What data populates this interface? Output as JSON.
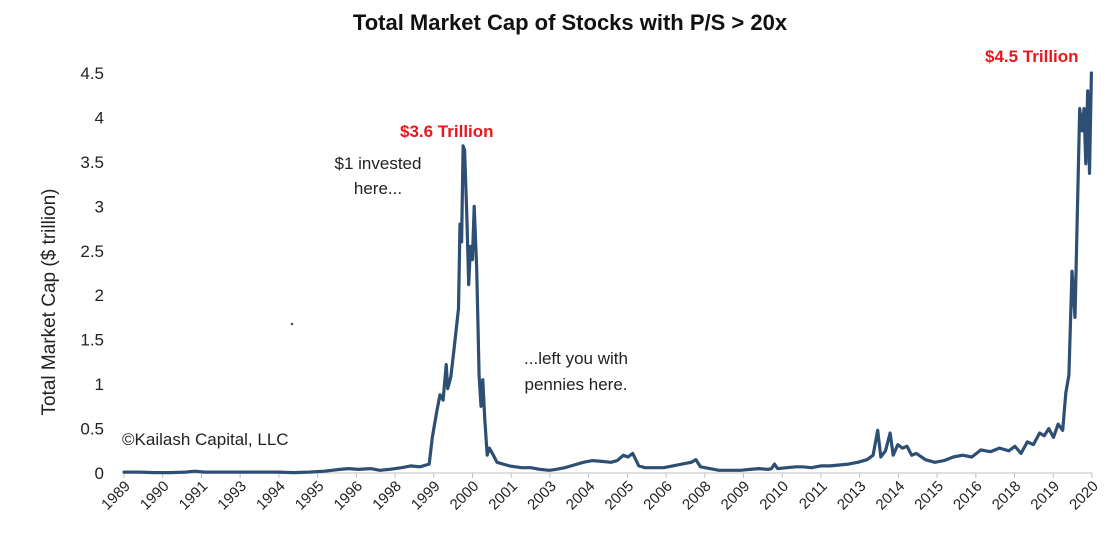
{
  "chart_data": {
    "type": "line",
    "title": "Total Market Cap of Stocks with P/S > 20x",
    "ylabel": "Total Market Cap ($ trillion)",
    "xlabel": "",
    "ylim": [
      0,
      4.5
    ],
    "yticks": [
      "0",
      "0.5",
      "1",
      "1.5",
      "2",
      "2.5",
      "3",
      "3.5",
      "4",
      "4.5"
    ],
    "xtick_labels": [
      "1989",
      "1990",
      "1991",
      "1993",
      "1994",
      "1995",
      "1996",
      "1998",
      "1999",
      "2000",
      "2001",
      "2003",
      "2004",
      "2005",
      "2006",
      "2008",
      "2009",
      "2010",
      "2011",
      "2013",
      "2014",
      "2015",
      "2016",
      "2018",
      "2019",
      "2020"
    ],
    "line_color": "#2e4f74",
    "series": [
      {
        "name": "Total Market Cap",
        "points": [
          [
            1989.0,
            0.01
          ],
          [
            1989.5,
            0.01
          ],
          [
            1990.0,
            0.005
          ],
          [
            1990.5,
            0.005
          ],
          [
            1991.0,
            0.01
          ],
          [
            1991.3,
            0.02
          ],
          [
            1991.6,
            0.01
          ],
          [
            1992.0,
            0.01
          ],
          [
            1992.5,
            0.01
          ],
          [
            1993.0,
            0.01
          ],
          [
            1993.5,
            0.01
          ],
          [
            1994.0,
            0.01
          ],
          [
            1994.5,
            0.005
          ],
          [
            1995.0,
            0.01
          ],
          [
            1995.5,
            0.02
          ],
          [
            1996.0,
            0.04
          ],
          [
            1996.3,
            0.05
          ],
          [
            1996.6,
            0.04
          ],
          [
            1997.0,
            0.05
          ],
          [
            1997.3,
            0.03
          ],
          [
            1997.6,
            0.04
          ],
          [
            1998.0,
            0.06
          ],
          [
            1998.3,
            0.08
          ],
          [
            1998.6,
            0.07
          ],
          [
            1998.9,
            0.1
          ],
          [
            1999.0,
            0.4
          ],
          [
            1999.15,
            0.7
          ],
          [
            1999.25,
            0.88
          ],
          [
            1999.35,
            0.82
          ],
          [
            1999.45,
            1.22
          ],
          [
            1999.5,
            0.95
          ],
          [
            1999.6,
            1.08
          ],
          [
            1999.7,
            1.38
          ],
          [
            1999.85,
            1.85
          ],
          [
            1999.9,
            2.8
          ],
          [
            1999.95,
            2.6
          ],
          [
            2000.0,
            3.68
          ],
          [
            2000.05,
            3.63
          ],
          [
            2000.12,
            2.9
          ],
          [
            2000.18,
            2.12
          ],
          [
            2000.24,
            2.55
          ],
          [
            2000.3,
            2.4
          ],
          [
            2000.36,
            3.0
          ],
          [
            2000.44,
            2.3
          ],
          [
            2000.52,
            1.1
          ],
          [
            2000.58,
            0.75
          ],
          [
            2000.64,
            1.05
          ],
          [
            2000.7,
            0.62
          ],
          [
            2000.78,
            0.2
          ],
          [
            2000.85,
            0.28
          ],
          [
            2000.95,
            0.22
          ],
          [
            2001.1,
            0.12
          ],
          [
            2001.3,
            0.1
          ],
          [
            2001.5,
            0.08
          ],
          [
            2001.7,
            0.07
          ],
          [
            2001.9,
            0.06
          ],
          [
            2002.2,
            0.06
          ],
          [
            2002.5,
            0.04
          ],
          [
            2002.8,
            0.03
          ],
          [
            2003.0,
            0.04
          ],
          [
            2003.3,
            0.06
          ],
          [
            2003.6,
            0.09
          ],
          [
            2003.9,
            0.12
          ],
          [
            2004.2,
            0.14
          ],
          [
            2004.5,
            0.13
          ],
          [
            2004.8,
            0.12
          ],
          [
            2005.0,
            0.14
          ],
          [
            2005.2,
            0.2
          ],
          [
            2005.35,
            0.18
          ],
          [
            2005.5,
            0.22
          ],
          [
            2005.7,
            0.08
          ],
          [
            2005.9,
            0.06
          ],
          [
            2006.2,
            0.06
          ],
          [
            2006.5,
            0.06
          ],
          [
            2006.8,
            0.08
          ],
          [
            2007.1,
            0.1
          ],
          [
            2007.4,
            0.12
          ],
          [
            2007.55,
            0.15
          ],
          [
            2007.7,
            0.07
          ],
          [
            2008.0,
            0.05
          ],
          [
            2008.3,
            0.03
          ],
          [
            2008.6,
            0.03
          ],
          [
            2009.0,
            0.03
          ],
          [
            2009.3,
            0.04
          ],
          [
            2009.6,
            0.05
          ],
          [
            2009.9,
            0.04
          ],
          [
            2010.0,
            0.05
          ],
          [
            2010.1,
            0.1
          ],
          [
            2010.2,
            0.05
          ],
          [
            2010.5,
            0.06
          ],
          [
            2010.8,
            0.07
          ],
          [
            2011.0,
            0.07
          ],
          [
            2011.3,
            0.06
          ],
          [
            2011.6,
            0.08
          ],
          [
            2011.9,
            0.08
          ],
          [
            2012.2,
            0.09
          ],
          [
            2012.5,
            0.1
          ],
          [
            2012.8,
            0.12
          ],
          [
            2013.1,
            0.15
          ],
          [
            2013.3,
            0.2
          ],
          [
            2013.45,
            0.48
          ],
          [
            2013.55,
            0.18
          ],
          [
            2013.7,
            0.25
          ],
          [
            2013.85,
            0.45
          ],
          [
            2013.95,
            0.2
          ],
          [
            2014.1,
            0.32
          ],
          [
            2014.25,
            0.28
          ],
          [
            2014.4,
            0.3
          ],
          [
            2014.55,
            0.2
          ],
          [
            2014.7,
            0.22
          ],
          [
            2015.0,
            0.15
          ],
          [
            2015.3,
            0.12
          ],
          [
            2015.6,
            0.14
          ],
          [
            2015.9,
            0.18
          ],
          [
            2016.2,
            0.2
          ],
          [
            2016.5,
            0.18
          ],
          [
            2016.8,
            0.26
          ],
          [
            2017.1,
            0.24
          ],
          [
            2017.4,
            0.28
          ],
          [
            2017.7,
            0.25
          ],
          [
            2017.9,
            0.3
          ],
          [
            2018.1,
            0.22
          ],
          [
            2018.3,
            0.35
          ],
          [
            2018.5,
            0.32
          ],
          [
            2018.7,
            0.45
          ],
          [
            2018.85,
            0.42
          ],
          [
            2019.0,
            0.5
          ],
          [
            2019.15,
            0.4
          ],
          [
            2019.3,
            0.55
          ],
          [
            2019.45,
            0.48
          ],
          [
            2019.55,
            0.9
          ],
          [
            2019.65,
            1.1
          ],
          [
            2019.75,
            2.27
          ],
          [
            2019.85,
            1.75
          ],
          [
            2019.95,
            3.3
          ],
          [
            2020.0,
            4.1
          ],
          [
            2020.08,
            3.85
          ],
          [
            2020.14,
            4.1
          ],
          [
            2020.2,
            3.48
          ],
          [
            2020.26,
            4.3
          ],
          [
            2020.32,
            3.37
          ],
          [
            2020.38,
            4.5
          ]
        ]
      }
    ],
    "annotations": [
      {
        "text": "$3.6 Trillion",
        "color": "#e8171c"
      },
      {
        "text": "$4.5 Trillion",
        "color": "#e8171c"
      },
      {
        "text": "$1 invested"
      },
      {
        "text": "here..."
      },
      {
        "text": "...left you with"
      },
      {
        "text": "pennies here."
      },
      {
        "text": "©Kailash Capital, LLC"
      }
    ]
  }
}
